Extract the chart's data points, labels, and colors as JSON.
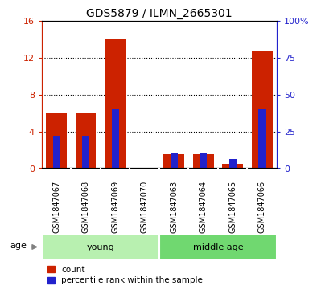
{
  "title": "GDS5879 / ILMN_2665301",
  "samples": [
    "GSM1847067",
    "GSM1847068",
    "GSM1847069",
    "GSM1847070",
    "GSM1847063",
    "GSM1847064",
    "GSM1847065",
    "GSM1847066"
  ],
  "counts": [
    6.0,
    6.0,
    14.0,
    0.0,
    1.5,
    1.5,
    0.5,
    12.8
  ],
  "percentiles": [
    22,
    22,
    40,
    0,
    10,
    10,
    6,
    40
  ],
  "group_labels": [
    "young",
    "middle age"
  ],
  "group_color_young": "#b8f0b0",
  "group_color_middle": "#70d870",
  "bar_color_red": "#CC2200",
  "bar_color_blue": "#2222CC",
  "ylim_left": [
    0,
    16
  ],
  "ylim_right": [
    0,
    100
  ],
  "yticks_left": [
    0,
    4,
    8,
    12,
    16
  ],
  "yticks_right": [
    0,
    25,
    50,
    75,
    100
  ],
  "ytick_labels_left": [
    "0",
    "4",
    "8",
    "12",
    "16"
  ],
  "ytick_labels_right": [
    "0",
    "25",
    "50",
    "75",
    "100%"
  ],
  "bg_color": "#D3D3D3",
  "plot_bg": "#FFFFFF",
  "legend_count": "count",
  "legend_percentile": "percentile rank within the sample",
  "age_label": "age"
}
